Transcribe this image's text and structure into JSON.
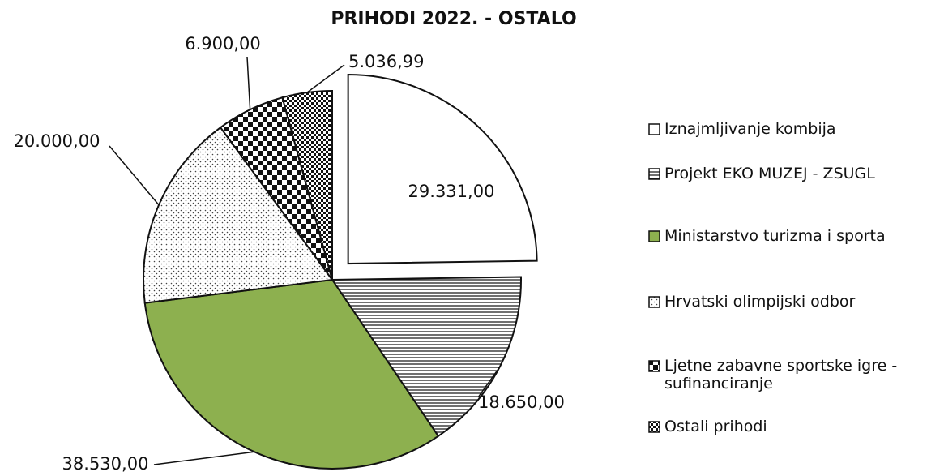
{
  "chart_data": {
    "type": "pie",
    "title": "PRIHODI 2022. - OSTALO",
    "categories": [
      "Iznajmljivanje kombija",
      "Projekt EKO MUZEJ - ZSUGL",
      "Ministarstvo turizma i sporta",
      "Hrvatski olimpijski odbor",
      "Ljetne zabavne sportske igre - sufinanciranje",
      "Ostali prihodi"
    ],
    "values": [
      29331,
      18650,
      38530,
      20000,
      6900,
      5036.99
    ],
    "value_labels": [
      "29.331,00",
      "18.650,00",
      "38.530,00",
      "20.000,00",
      "6.900,00",
      "5.036,99"
    ],
    "colors": [
      "#ffffff",
      "#ffffff",
      "#8db04f",
      "#ffffff",
      "#ffffff",
      "#ffffff"
    ]
  }
}
